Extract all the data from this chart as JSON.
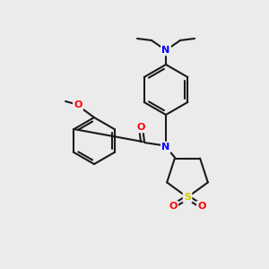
{
  "background_color": "#ebebeb",
  "bond_color": "#1a1a1a",
  "atom_colors": {
    "N": "#0000ff",
    "O": "#ff0000",
    "S": "#cccc00",
    "C": "#1a1a1a"
  },
  "figsize": [
    3.0,
    3.0
  ],
  "dpi": 100
}
